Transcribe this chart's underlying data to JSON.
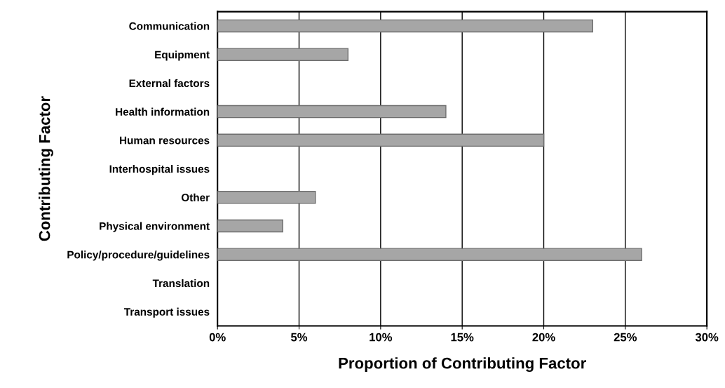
{
  "chart_data": {
    "type": "bar",
    "orientation": "horizontal",
    "xlabel": "Proportion of Contributing Factor",
    "ylabel": "Contributing Factor",
    "categories": [
      "Communication",
      "Equipment",
      "External factors",
      "Health information",
      "Human resources",
      "Interhospital issues",
      "Other",
      "Physical environment",
      "Policy/procedure/guidelines",
      "Translation",
      "Transport issues"
    ],
    "values": [
      23,
      8,
      0,
      14,
      20,
      0,
      6,
      4,
      26,
      0,
      0
    ],
    "color": "#a6a6a6",
    "xlim": [
      0,
      30
    ],
    "xticks": [
      {
        "value": 0,
        "label": "0%"
      },
      {
        "value": 5,
        "label": "5%"
      },
      {
        "value": 10,
        "label": "10%"
      },
      {
        "value": 15,
        "label": "15%"
      },
      {
        "value": 20,
        "label": "20%"
      },
      {
        "value": 25,
        "label": "25%"
      },
      {
        "value": 30,
        "label": "30%"
      }
    ],
    "grid": "x"
  }
}
